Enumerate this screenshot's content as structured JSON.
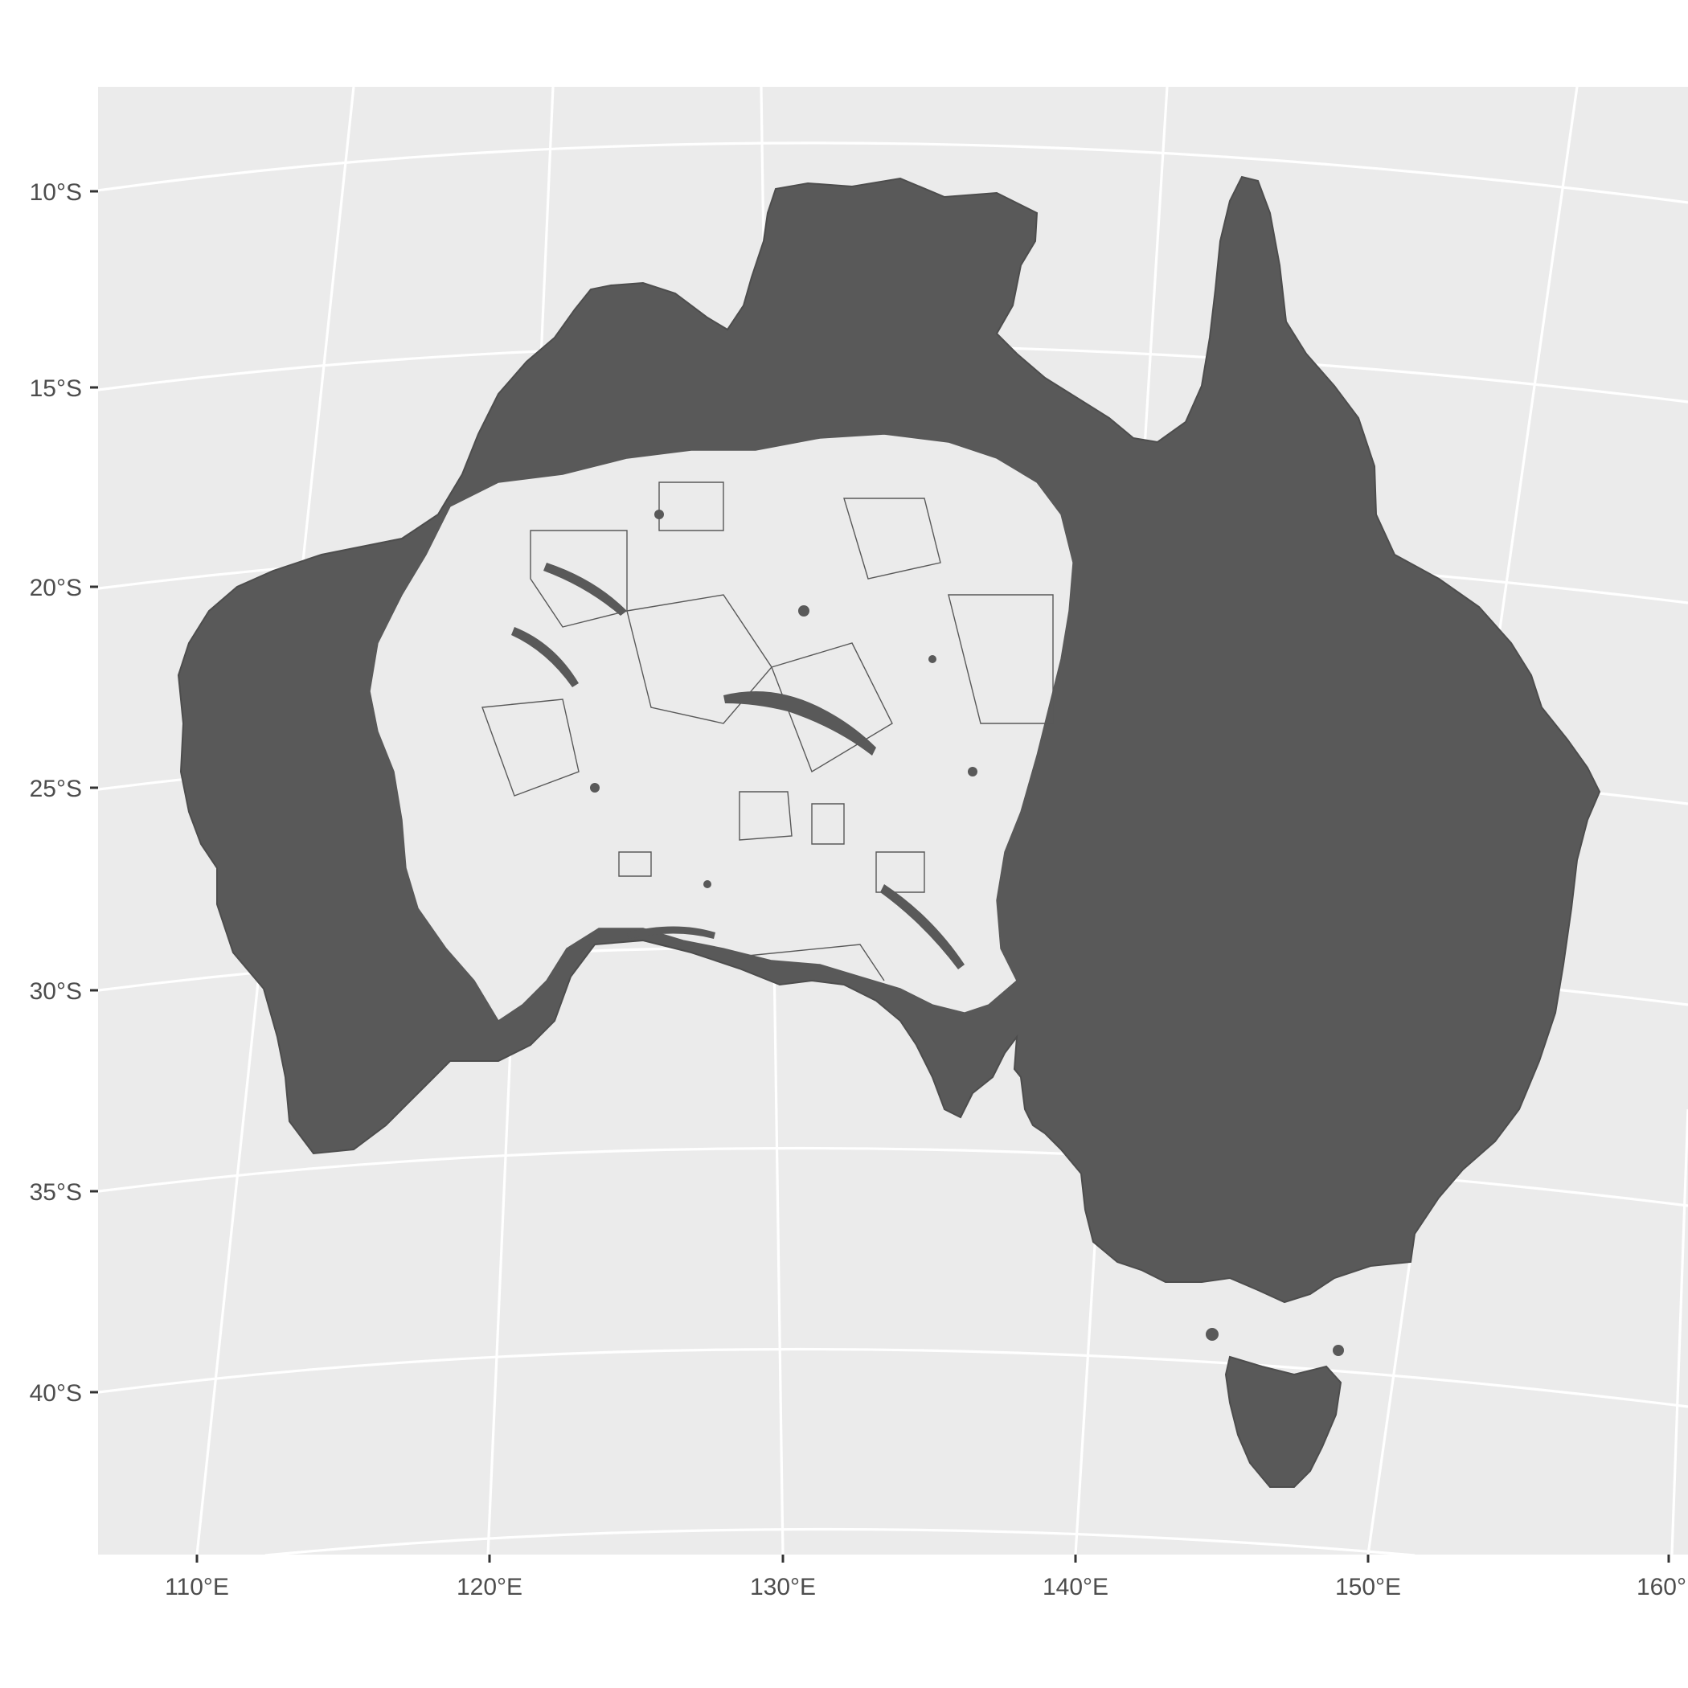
{
  "panel": {
    "background": "#ebebeb",
    "grid_color": "#ffffff",
    "land_color": "#595959",
    "interior_color": "#ebebeb"
  },
  "axes": {
    "latitude_labels": [
      "10°S",
      "15°S",
      "20°S",
      "25°S",
      "30°S",
      "35°S",
      "40°S"
    ],
    "longitude_labels": [
      "110°E",
      "120°E",
      "130°E",
      "140°E",
      "150°E",
      "160°"
    ]
  },
  "map_features": {
    "mainland": "australia-mainland-polygon",
    "island": "tasmania-polygon",
    "style": "dense dark polygons of many small regions with light interior gaps"
  }
}
